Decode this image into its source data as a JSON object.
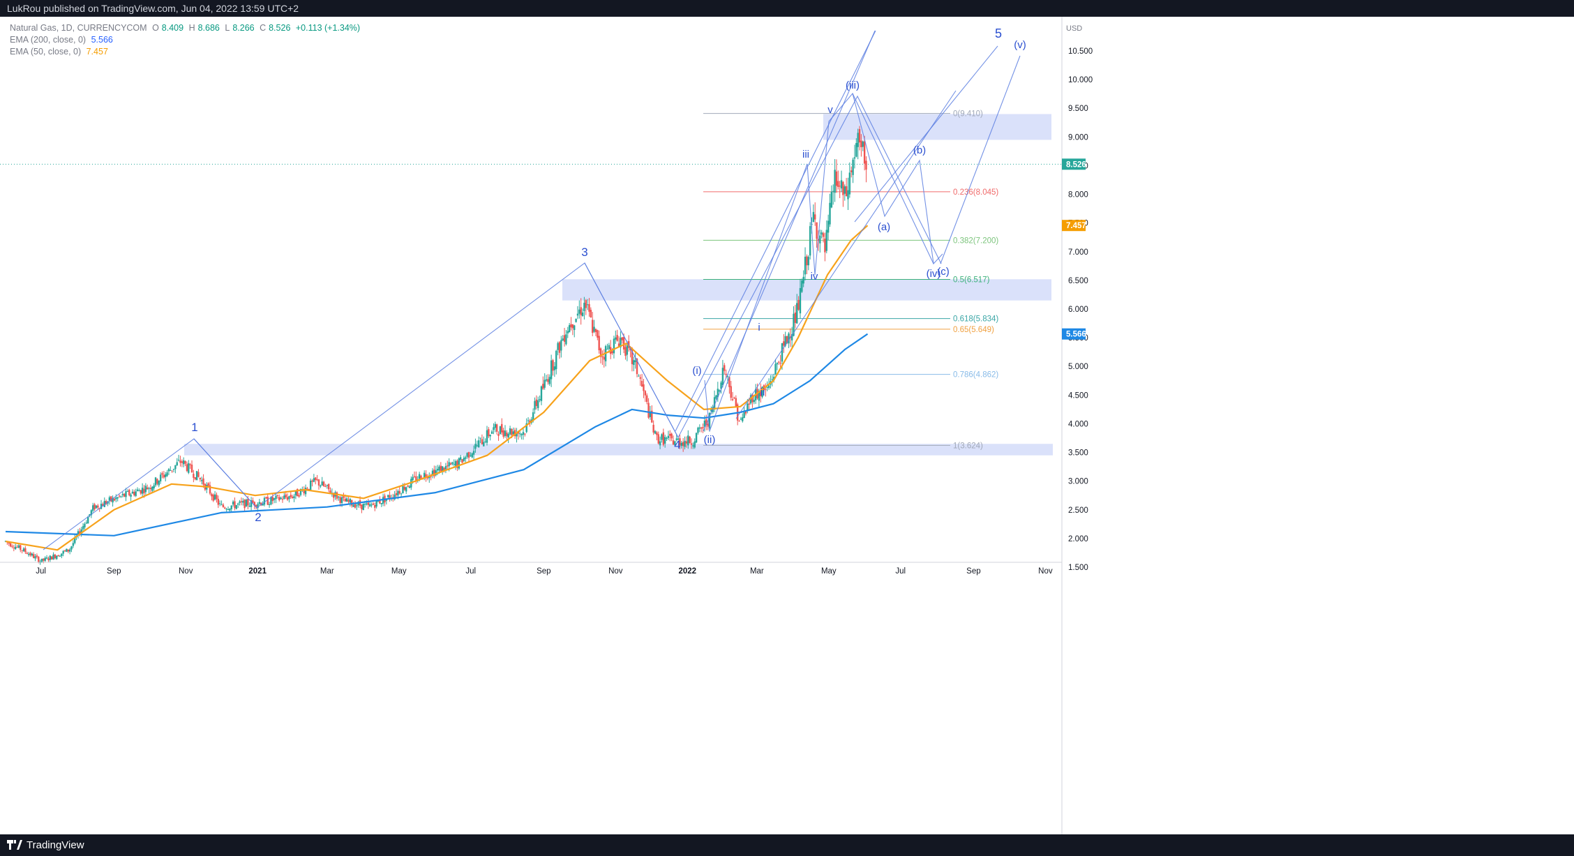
{
  "header": {
    "published": "LukRou published on TradingView.com, Jun 04, 2022 13:59 UTC+2"
  },
  "legend": {
    "symbol": "Natural Gas, 1D, CURRENCYCOM",
    "o_label": "O",
    "o_value": "8.409",
    "h_label": "H",
    "h_value": "8.686",
    "l_label": "L",
    "l_value": "8.266",
    "c_label": "C",
    "c_value": "8.526",
    "change": "+0.113 (+1.34%)",
    "ema200_label": "EMA (200, close, 0)",
    "ema200_value": "5.566",
    "ema50_label": "EMA (50, close, 0)",
    "ema50_value": "7.457"
  },
  "footer": {
    "brand": "TradingView"
  },
  "colors": {
    "up": "#26a69a",
    "down": "#ef5350",
    "ema50": "#f7a21b",
    "ema200": "#1e88e5",
    "drawing": "#5b7ee0",
    "zone": "rgba(150,170,240,0.35)",
    "topbar": "#131722"
  },
  "chart_data": {
    "type": "line",
    "title": "Natural Gas, 1D, CURRENCYCOM",
    "currency": "USD",
    "ylim": [
      1.5,
      10.5
    ],
    "y_ticks": [
      "1.500",
      "2.000",
      "2.500",
      "3.000",
      "3.500",
      "4.000",
      "4.500",
      "5.000",
      "5.500",
      "6.000",
      "6.500",
      "7.000",
      "7.500",
      "8.000",
      "8.500",
      "9.000",
      "9.500",
      "10.000",
      "10.500"
    ],
    "x_ticks": [
      "Jul",
      "Sep",
      "Nov",
      "2021",
      "Mar",
      "May",
      "Jul",
      "Sep",
      "Nov",
      "2022",
      "Mar",
      "May",
      "Jul",
      "Sep",
      "Nov"
    ],
    "x_tick_dates": [
      "2020-07-01",
      "2020-09-01",
      "2020-11-01",
      "2021-01-01",
      "2021-03-01",
      "2021-05-01",
      "2021-07-01",
      "2021-09-01",
      "2021-11-01",
      "2022-01-01",
      "2022-03-01",
      "2022-05-01",
      "2022-07-01",
      "2022-09-01",
      "2022-11-01"
    ],
    "series": [
      {
        "name": "Natural Gas",
        "x": [
          "2020-06-01",
          "2020-06-20",
          "2020-07-01",
          "2020-07-25",
          "2020-08-15",
          "2020-09-10",
          "2020-10-01",
          "2020-10-28",
          "2020-11-15",
          "2020-12-01",
          "2020-12-20",
          "2021-01-10",
          "2021-02-01",
          "2021-02-20",
          "2021-03-15",
          "2021-04-05",
          "2021-04-25",
          "2021-05-20",
          "2021-06-20",
          "2021-07-20",
          "2021-08-15",
          "2021-09-01",
          "2021-09-20",
          "2021-10-06",
          "2021-10-20",
          "2021-11-05",
          "2021-11-20",
          "2021-12-05",
          "2021-12-20",
          "2022-01-05",
          "2022-01-20",
          "2022-02-01",
          "2022-02-15",
          "2022-02-25",
          "2022-03-10",
          "2022-03-25",
          "2022-04-05",
          "2022-04-18",
          "2022-04-28",
          "2022-05-06",
          "2022-05-15",
          "2022-05-25",
          "2022-06-03"
        ],
        "values": [
          1.95,
          1.75,
          1.6,
          1.8,
          2.55,
          2.75,
          2.9,
          3.35,
          3.0,
          2.55,
          2.6,
          2.65,
          2.75,
          3.0,
          2.65,
          2.55,
          2.75,
          3.1,
          3.3,
          3.9,
          3.85,
          4.65,
          5.65,
          6.1,
          5.2,
          5.5,
          4.9,
          3.75,
          3.7,
          3.7,
          4.1,
          5.0,
          4.0,
          4.5,
          4.6,
          5.4,
          6.0,
          7.6,
          7.0,
          8.3,
          7.9,
          8.9,
          8.526
        ]
      },
      {
        "name": "EMA (200, close, 0)",
        "x": [
          "2020-06-01",
          "2020-09-01",
          "2020-12-01",
          "2021-03-01",
          "2021-06-01",
          "2021-08-15",
          "2021-10-15",
          "2021-11-15",
          "2021-12-15",
          "2022-01-15",
          "2022-02-15",
          "2022-03-15",
          "2022-04-15",
          "2022-05-15",
          "2022-06-03"
        ],
        "values": [
          2.12,
          2.05,
          2.45,
          2.55,
          2.8,
          3.2,
          3.95,
          4.25,
          4.15,
          4.1,
          4.2,
          4.35,
          4.75,
          5.3,
          5.566
        ]
      },
      {
        "name": "EMA (50, close, 0)",
        "x": [
          "2020-06-01",
          "2020-07-15",
          "2020-09-01",
          "2020-10-20",
          "2020-11-20",
          "2020-12-30",
          "2021-02-10",
          "2021-04-01",
          "2021-05-15",
          "2021-07-15",
          "2021-09-01",
          "2021-10-10",
          "2021-11-10",
          "2021-12-15",
          "2022-01-15",
          "2022-02-15",
          "2022-03-15",
          "2022-04-05",
          "2022-04-30",
          "2022-05-20",
          "2022-06-03"
        ],
        "values": [
          1.95,
          1.8,
          2.5,
          2.95,
          2.9,
          2.75,
          2.85,
          2.7,
          3.0,
          3.45,
          4.2,
          5.1,
          5.4,
          4.75,
          4.25,
          4.3,
          4.75,
          5.5,
          6.6,
          7.2,
          7.457
        ]
      }
    ],
    "wave_labels": [
      "1",
      "2",
      "3",
      "4",
      "5",
      "(i)",
      "(ii)",
      "(iii)",
      "(iv)",
      "(v)",
      "i",
      "ii",
      "iii",
      "iv",
      "v",
      "(a)",
      "(b)",
      "(c)"
    ],
    "fibonacci": [
      {
        "label": "0(9.410)",
        "value": 9.41
      },
      {
        "label": "0.236(8.045)",
        "value": 8.045
      },
      {
        "label": "0.382(7.200)",
        "value": 7.2
      },
      {
        "label": "0.5(6.517)",
        "value": 6.517
      },
      {
        "label": "0.618(5.834)",
        "value": 5.834
      },
      {
        "label": "0.65(5.649)",
        "value": 5.649
      },
      {
        "label": "0.786(4.862)",
        "value": 4.862
      },
      {
        "label": "1(3.624)",
        "value": 3.624
      }
    ],
    "zones": [
      [
        3.45,
        3.65
      ],
      [
        6.15,
        6.52
      ],
      [
        8.95,
        9.4
      ]
    ],
    "last_price": "8.526",
    "ema200_last": "5.566",
    "ema50_last": "7.457",
    "grid": false
  }
}
